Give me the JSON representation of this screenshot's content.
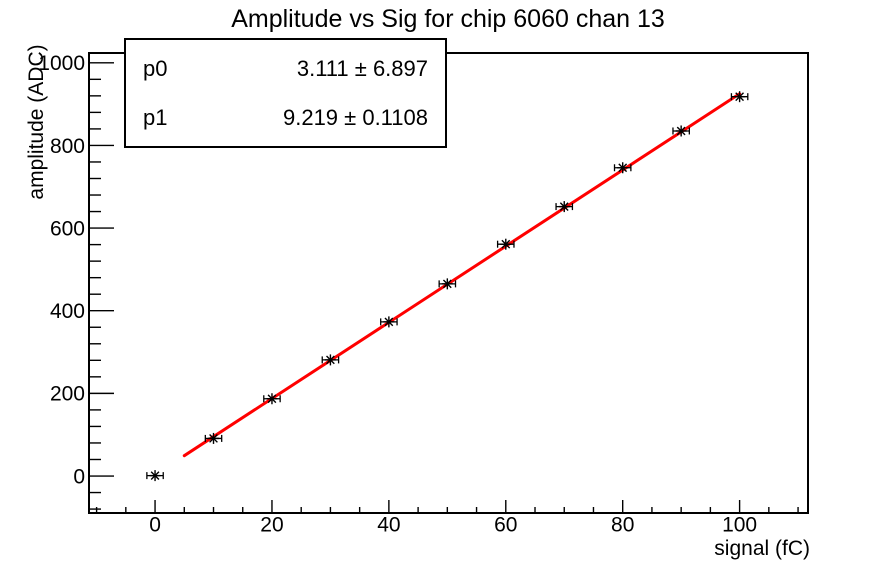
{
  "title": "Amplitude vs Sig for chip 6060 chan 13",
  "stats_box": {
    "rows": [
      {
        "label": "p0",
        "value": "3.111 ± 6.897"
      },
      {
        "label": "p1",
        "value": "9.219 ± 0.1108"
      }
    ]
  },
  "chart_data": {
    "type": "scatter",
    "title": "Amplitude vs Sig for chip 6060 chan 13",
    "xlabel": "signal (fC)",
    "ylabel": "amplitude (ADC)",
    "x": [
      0,
      10,
      20,
      30,
      40,
      50,
      60,
      70,
      80,
      90,
      100
    ],
    "y": [
      1,
      91,
      187,
      281,
      373,
      465,
      561,
      652,
      746,
      835,
      918
    ],
    "x_error": 1.4,
    "fit": {
      "type": "linear",
      "p0": 3.111,
      "p1": 9.219,
      "range": [
        5,
        100
      ],
      "color": "#ff0000"
    },
    "xlim": [
      -11.3,
      111.7
    ],
    "ylim": [
      -89.5,
      1023.7
    ],
    "x_major_ticks": [
      0,
      20,
      40,
      60,
      80,
      100
    ],
    "x_minor_step": 5,
    "y_major_ticks": [
      0,
      200,
      400,
      600,
      800,
      1000
    ],
    "y_minor_step": 40,
    "marker": "star8",
    "marker_color": "#000000",
    "grid": false,
    "legend_position": "none"
  },
  "colors": {
    "fit_line": "#ff0000",
    "axis": "#000000",
    "background": "#ffffff"
  }
}
